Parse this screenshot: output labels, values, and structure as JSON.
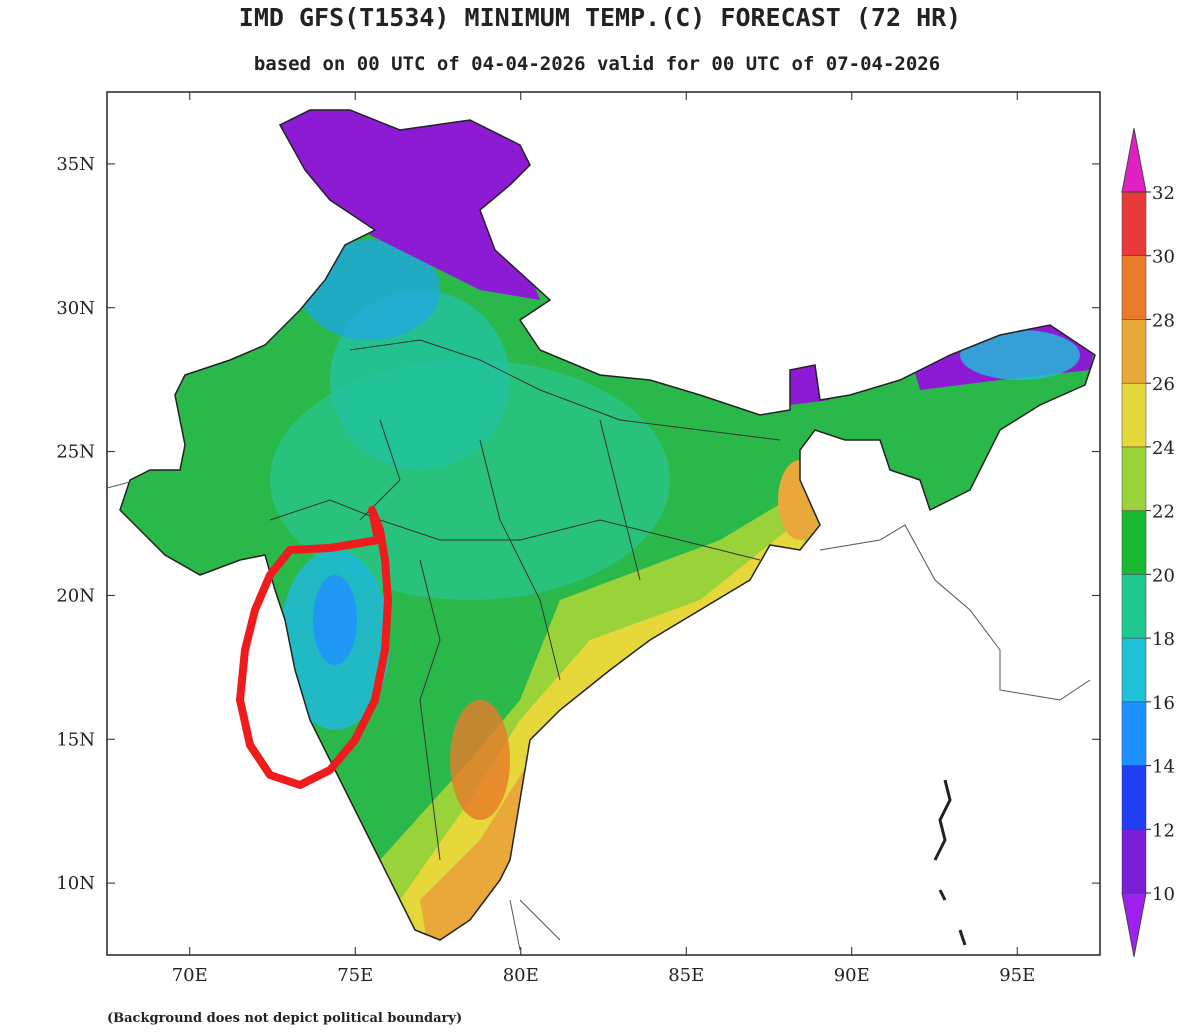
{
  "title": "IMD GFS(T1534) MINIMUM TEMP.(C) FORECAST (72 HR)",
  "subtitle": "based on 00 UTC of 04-04-2026 valid for 00 UTC of 07-04-2026",
  "map": {
    "xlim": [
      67.5,
      97.5
    ],
    "ylim": [
      7.5,
      37.5
    ],
    "xticks": [
      {
        "value": 70,
        "label": "70E"
      },
      {
        "value": 75,
        "label": "75E"
      },
      {
        "value": 80,
        "label": "80E"
      },
      {
        "value": 85,
        "label": "85E"
      },
      {
        "value": 90,
        "label": "90E"
      },
      {
        "value": 95,
        "label": "95E"
      }
    ],
    "yticks": [
      {
        "value": 10,
        "label": "10N"
      },
      {
        "value": 15,
        "label": "15N"
      },
      {
        "value": 20,
        "label": "20N"
      },
      {
        "value": 25,
        "label": "25N"
      },
      {
        "value": 30,
        "label": "30N"
      },
      {
        "value": 35,
        "label": "35N"
      }
    ]
  },
  "colorbar": {
    "ticks": [
      10,
      12,
      14,
      16,
      18,
      20,
      22,
      24,
      26,
      28,
      30,
      32
    ],
    "colors": [
      "#a020f0",
      "#7a1fd6",
      "#1f3ff0",
      "#1e90ff",
      "#20c0d8",
      "#20c890",
      "#18b830",
      "#9ad23a",
      "#e6d83a",
      "#e8a83a",
      "#e87a2a",
      "#e83a3a",
      "#e020c0"
    ]
  },
  "footnote": "(Background does not depict political boundary)"
}
